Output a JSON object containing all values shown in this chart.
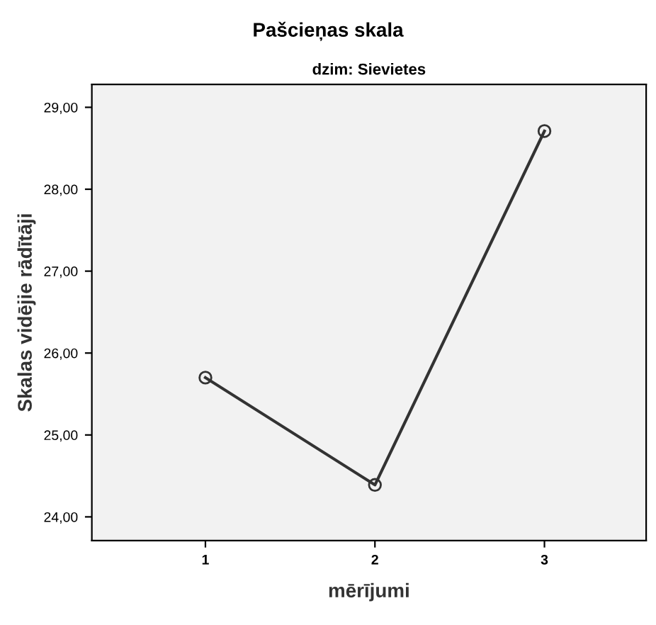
{
  "chart_data": {
    "type": "line",
    "title": "Pašcieņas skala",
    "subtitle": "dzim: Sievietes",
    "xlabel": "mērījumi",
    "ylabel": "Skalas vidējie rādītāji",
    "x": [
      1,
      2,
      3
    ],
    "series": [
      {
        "color": "#333333",
        "values": [
          25.7,
          24.39,
          28.71
        ]
      }
    ],
    "xlim": [
      0.33,
      3.6
    ],
    "xticks": [
      1,
      2,
      3
    ],
    "ylim": [
      23.71,
      29.28
    ],
    "yticks": [
      {
        "value": 24,
        "label": "24,00"
      },
      {
        "value": 25,
        "label": "25,00"
      },
      {
        "value": 26,
        "label": "26,00"
      },
      {
        "value": 27,
        "label": "27,00"
      },
      {
        "value": 28,
        "label": "28,00"
      },
      {
        "value": 29,
        "label": "29,00"
      }
    ],
    "marker": "circle",
    "line_style": "solid",
    "grid": false,
    "legend": false
  }
}
